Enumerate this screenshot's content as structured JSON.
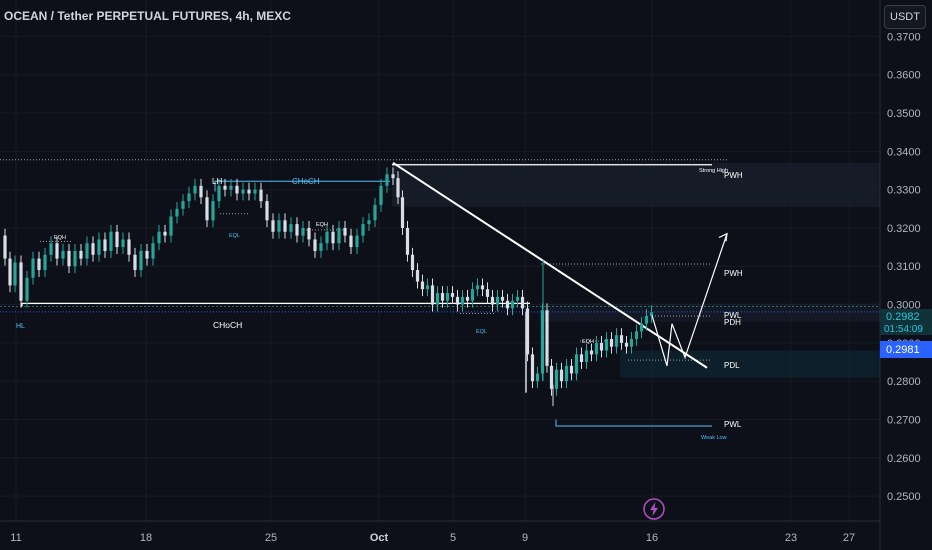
{
  "title": "OCEAN / Tether PERPETUAL FUTURES, 4h, MEXC",
  "currency_button": "USDT",
  "icons": {
    "event": "lightning-bolt-icon"
  },
  "colors": {
    "background": "#0e1019",
    "bull": "#26a69a",
    "bear": "#d9dde6",
    "annotation": "#4fc3f7",
    "white_line": "#ffffff",
    "price_badge": "#2962ff",
    "last_price_badge": "#1e4a73"
  },
  "chart_data": {
    "type": "candlestick",
    "ylim": [
      0.2435,
      0.3795
    ],
    "y_ticks": [
      "0.3700",
      "0.3600",
      "0.3500",
      "0.3400",
      "0.3300",
      "0.3200",
      "0.3100",
      "0.3000",
      "0.2900",
      "0.2800",
      "0.2700",
      "0.2600",
      "0.2500"
    ],
    "x_ticks": [
      "11",
      "18",
      "25",
      "Oct",
      "5",
      "9",
      "16",
      "23",
      "27"
    ],
    "last_price": {
      "value": "0.2982",
      "countdown": "01:54:09"
    },
    "current_price": "0.2981",
    "price_path": [
      [
        0,
        0.318
      ],
      [
        6,
        0.312
      ],
      [
        10,
        0.305
      ],
      [
        16,
        0.311
      ],
      [
        22,
        0.301
      ],
      [
        28,
        0.307
      ],
      [
        34,
        0.312
      ],
      [
        40,
        0.309
      ],
      [
        46,
        0.313
      ],
      [
        52,
        0.316
      ],
      [
        58,
        0.312
      ],
      [
        64,
        0.314
      ],
      [
        70,
        0.31
      ],
      [
        76,
        0.314
      ],
      [
        82,
        0.312
      ],
      [
        88,
        0.316
      ],
      [
        94,
        0.313
      ],
      [
        100,
        0.317
      ],
      [
        106,
        0.314
      ],
      [
        112,
        0.319
      ],
      [
        118,
        0.315
      ],
      [
        124,
        0.317
      ],
      [
        130,
        0.313
      ],
      [
        136,
        0.309
      ],
      [
        142,
        0.314
      ],
      [
        148,
        0.312
      ],
      [
        154,
        0.316
      ],
      [
        160,
        0.319
      ],
      [
        166,
        0.318
      ],
      [
        172,
        0.323
      ],
      [
        178,
        0.325
      ],
      [
        184,
        0.327
      ],
      [
        190,
        0.329
      ],
      [
        196,
        0.331
      ],
      [
        202,
        0.328
      ],
      [
        208,
        0.322
      ],
      [
        214,
        0.327
      ],
      [
        220,
        0.331
      ],
      [
        226,
        0.33
      ],
      [
        232,
        0.331
      ],
      [
        238,
        0.329
      ],
      [
        244,
        0.33
      ],
      [
        250,
        0.329
      ],
      [
        256,
        0.33
      ],
      [
        262,
        0.327
      ],
      [
        268,
        0.322
      ],
      [
        274,
        0.319
      ],
      [
        280,
        0.322
      ],
      [
        286,
        0.319
      ],
      [
        292,
        0.321
      ],
      [
        298,
        0.318
      ],
      [
        304,
        0.32
      ],
      [
        310,
        0.317
      ],
      [
        316,
        0.314
      ],
      [
        322,
        0.316
      ],
      [
        328,
        0.319
      ],
      [
        334,
        0.316
      ],
      [
        340,
        0.32
      ],
      [
        346,
        0.318
      ],
      [
        352,
        0.315
      ],
      [
        358,
        0.318
      ],
      [
        364,
        0.321
      ],
      [
        370,
        0.322
      ],
      [
        376,
        0.326
      ],
      [
        382,
        0.331
      ],
      [
        388,
        0.334
      ],
      [
        394,
        0.333
      ],
      [
        398,
        0.328
      ],
      [
        403,
        0.32
      ],
      [
        408,
        0.313
      ],
      [
        413,
        0.309
      ],
      [
        418,
        0.306
      ],
      [
        423,
        0.304
      ],
      [
        428,
        0.305
      ],
      [
        433,
        0.3
      ],
      [
        438,
        0.303
      ],
      [
        443,
        0.301
      ],
      [
        448,
        0.303
      ],
      [
        453,
        0.302
      ],
      [
        458,
        0.3
      ],
      [
        463,
        0.302
      ],
      [
        468,
        0.301
      ],
      [
        473,
        0.304
      ],
      [
        478,
        0.305
      ],
      [
        483,
        0.304
      ],
      [
        488,
        0.302
      ],
      [
        493,
        0.3
      ],
      [
        498,
        0.302
      ],
      [
        503,
        0.301
      ],
      [
        508,
        0.299
      ],
      [
        513,
        0.301
      ],
      [
        518,
        0.302
      ],
      [
        523,
        0.299
      ],
      [
        528,
        0.287
      ],
      [
        533,
        0.28
      ],
      [
        538,
        0.282
      ],
      [
        543,
        0.2985
      ],
      [
        547,
        0.284
      ],
      [
        552,
        0.278
      ],
      [
        557,
        0.283
      ],
      [
        562,
        0.28
      ],
      [
        567,
        0.284
      ],
      [
        572,
        0.282
      ],
      [
        577,
        0.287
      ],
      [
        582,
        0.285
      ],
      [
        587,
        0.288
      ],
      [
        592,
        0.287
      ],
      [
        597,
        0.29
      ],
      [
        602,
        0.288
      ],
      [
        607,
        0.291
      ],
      [
        612,
        0.289
      ],
      [
        617,
        0.292
      ],
      [
        622,
        0.29
      ],
      [
        627,
        0.289
      ],
      [
        632,
        0.291
      ],
      [
        637,
        0.293
      ],
      [
        642,
        0.295
      ],
      [
        647,
        0.297
      ],
      [
        652,
        0.298
      ]
    ],
    "horizontal_levels": [
      {
        "label": "PWH",
        "value": 0.337,
        "note": "Strong High"
      },
      {
        "label": "PWH",
        "value": 0.3106
      },
      {
        "label": "PWL",
        "value": 0.2983
      },
      {
        "label": "PDH",
        "value": 0.297
      },
      {
        "label": "PDL",
        "value": 0.2855
      },
      {
        "label": "PWL",
        "value": 0.2683,
        "note": "Weak Low"
      }
    ],
    "annotations": [
      "LH",
      "CHoCH",
      "EQH",
      "EQL",
      "EQH",
      "HL",
      "CHoCH",
      "EQL",
      "EQH",
      "Strong High",
      "Weak Low",
      "PWH",
      "PWH",
      "PWL",
      "PDH",
      "PDL",
      "PWL"
    ]
  }
}
